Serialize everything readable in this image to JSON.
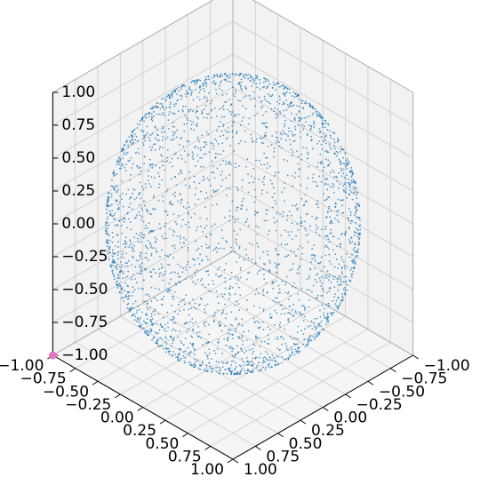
{
  "chart_data": {
    "type": "scatter",
    "projection": "3d",
    "title": "",
    "xlabel": "",
    "ylabel": "",
    "zlabel": "",
    "xlim": [
      -1,
      1
    ],
    "ylim": [
      -1,
      1
    ],
    "zlim": [
      -1,
      1
    ],
    "grid": true,
    "x_ticks": [
      "−1.00",
      "−0.75",
      "−0.50",
      "−0.25",
      "0.00",
      "0.25",
      "0.50",
      "0.75",
      "1.00"
    ],
    "y_ticks": [
      "−1.00",
      "−0.75",
      "−0.50",
      "−0.25",
      "0.00",
      "0.25",
      "0.50",
      "0.75",
      "1.00"
    ],
    "z_ticks": [
      "−1.00",
      "−0.75",
      "−0.50",
      "−0.25",
      "0.00",
      "0.25",
      "0.50",
      "0.75",
      "1.00"
    ],
    "series": [
      {
        "description": "points uniformly distributed on the surface of a unit sphere",
        "distribution": "unit-sphere-surface",
        "radius": 1,
        "center": [
          0,
          0,
          0
        ],
        "approx_count": 3000,
        "color": "#1f77b4",
        "marker": "dot"
      },
      {
        "description": "single highlighted point",
        "x": [
          1.0
        ],
        "y": [
          -1.0
        ],
        "z": [
          -1.0
        ],
        "color": "#e377c2",
        "marker": "circle"
      }
    ]
  }
}
